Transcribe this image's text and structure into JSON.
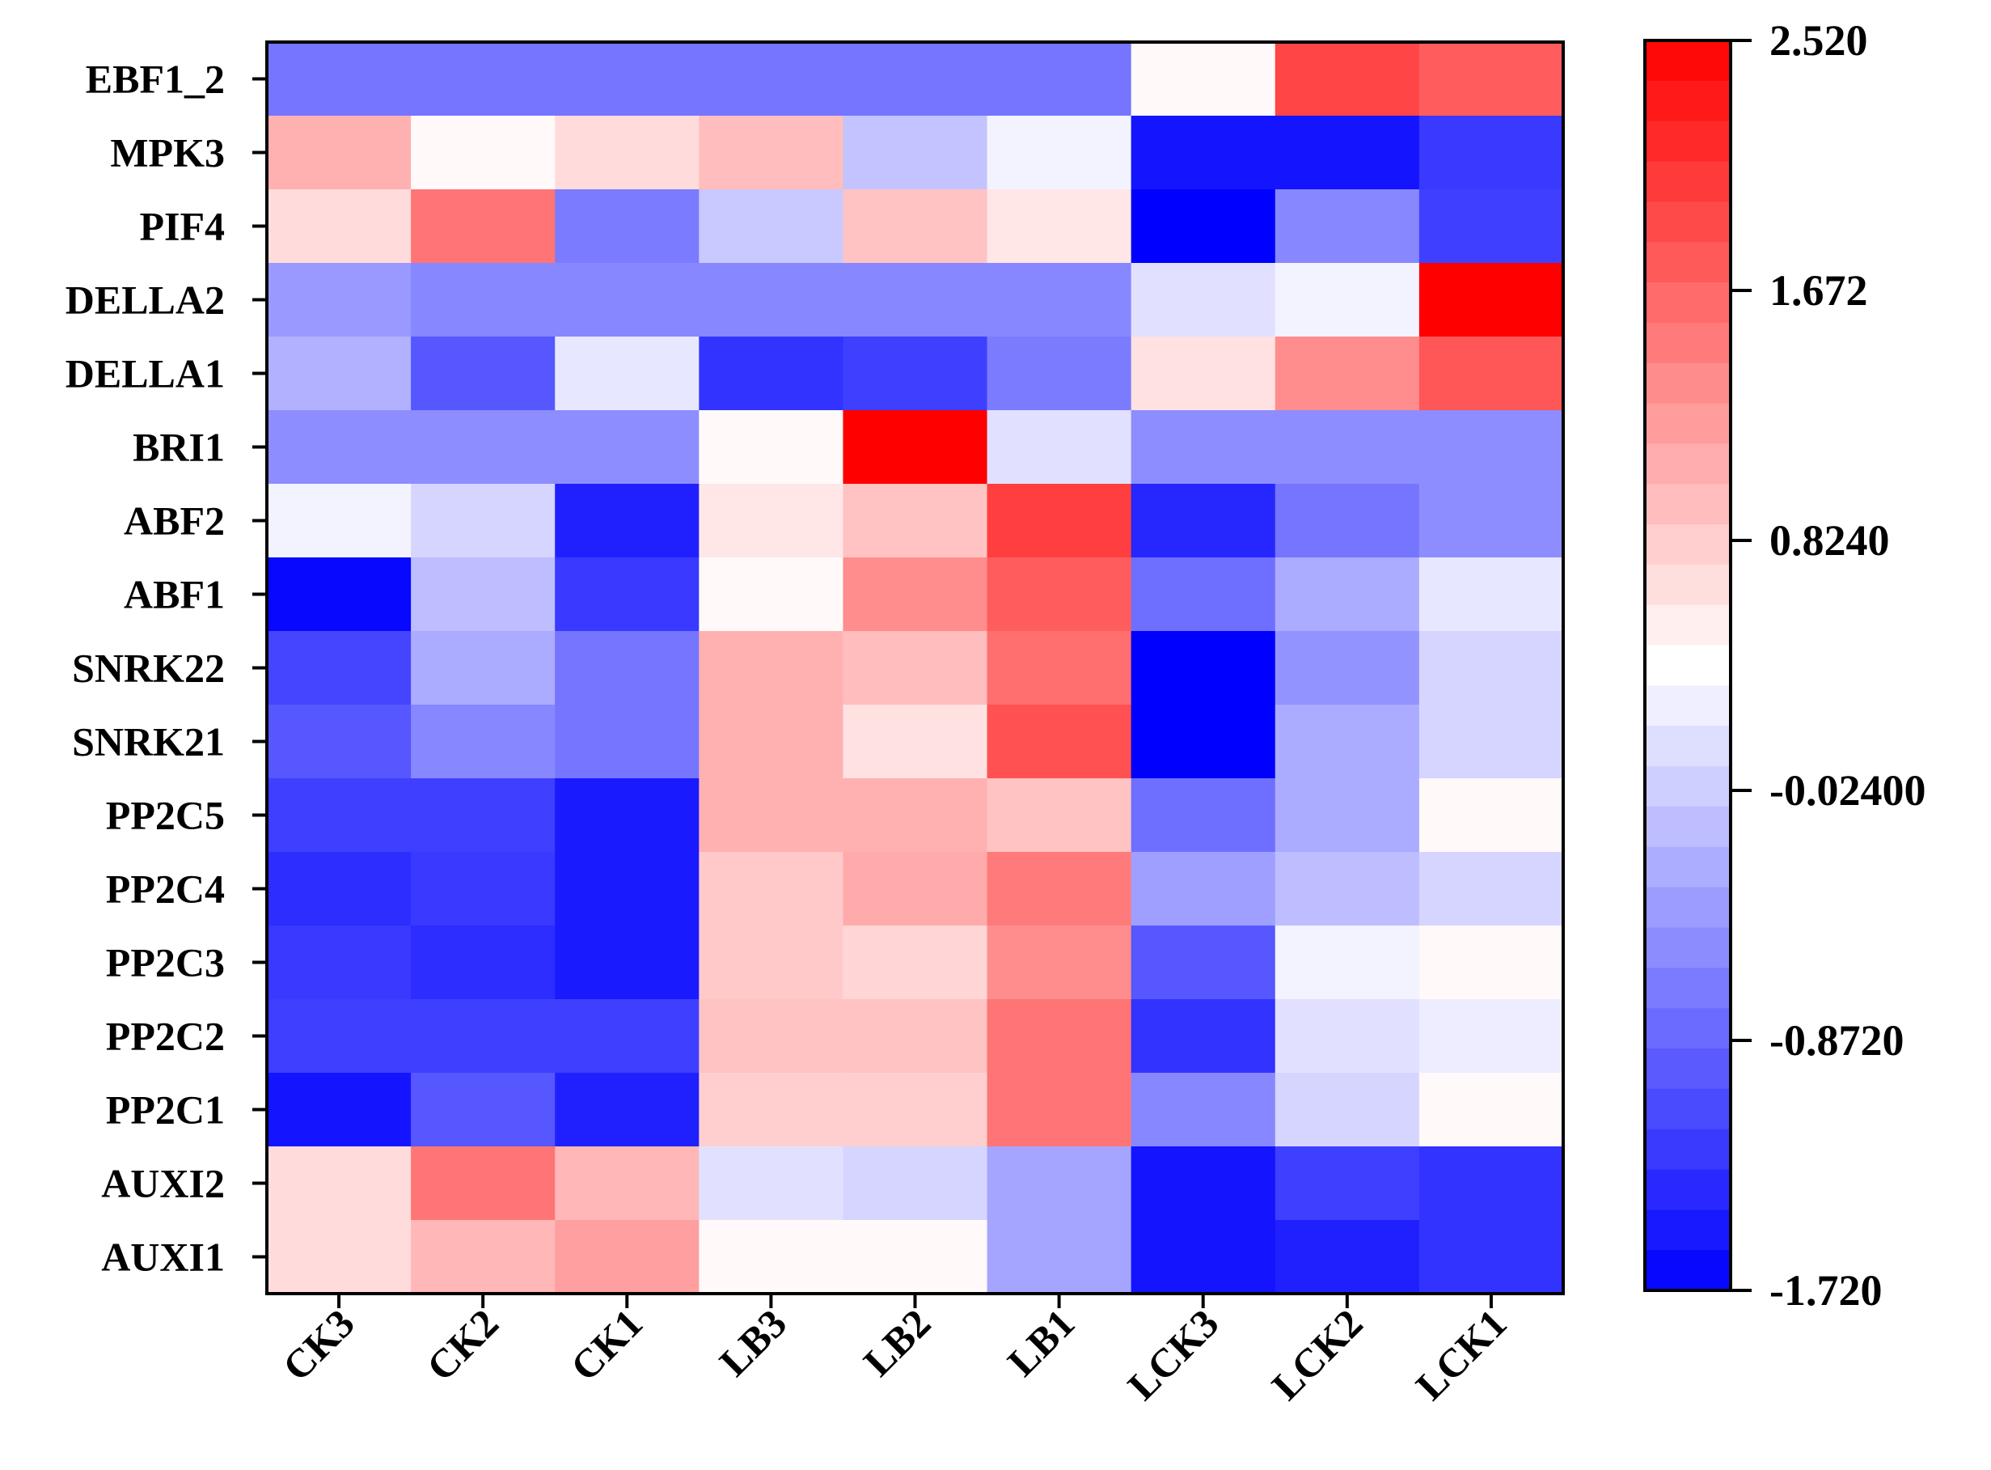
{
  "chart_data": {
    "type": "heatmap",
    "title": "",
    "xlabel": "",
    "ylabel": "",
    "columns": [
      "CK3",
      "CK2",
      "CK1",
      "LB3",
      "LB2",
      "LB1",
      "LCK3",
      "LCK2",
      "LCK1"
    ],
    "rows": [
      "EBF1_2",
      "MPK3",
      "PIF4",
      "DELLA2",
      "DELLA1",
      "BRI1",
      "ABF2",
      "ABF1",
      "SNRK22",
      "SNRK21",
      "PP2C5",
      "PP2C4",
      "PP2C3",
      "PP2C2",
      "PP2C1",
      "AUXI2",
      "AUXI1"
    ],
    "values": [
      [
        -0.75,
        -0.75,
        -0.75,
        -0.75,
        -0.75,
        -0.75,
        0.45,
        1.95,
        1.75
      ],
      [
        1.05,
        0.45,
        0.7,
        0.95,
        -0.1,
        0.3,
        -1.55,
        -1.55,
        -1.25
      ],
      [
        0.7,
        1.55,
        -0.7,
        -0.05,
        0.9,
        0.6,
        -1.72,
        -0.6,
        -1.2
      ],
      [
        -0.45,
        -0.6,
        -0.6,
        -0.6,
        -0.6,
        -0.6,
        0.15,
        0.3,
        2.52
      ],
      [
        -0.25,
        -1.0,
        0.2,
        -1.3,
        -1.2,
        -0.7,
        0.65,
        1.35,
        1.8
      ],
      [
        -0.55,
        -0.55,
        -0.55,
        0.45,
        2.52,
        0.15,
        -0.55,
        -0.55,
        -0.55
      ],
      [
        0.3,
        0.05,
        -1.45,
        0.6,
        0.9,
        2.0,
        -1.4,
        -0.75,
        -0.55
      ],
      [
        -1.65,
        -0.15,
        -1.25,
        0.45,
        1.35,
        1.75,
        -0.8,
        -0.3,
        0.2
      ],
      [
        -1.15,
        -0.3,
        -0.75,
        1.05,
        0.95,
        1.6,
        -1.72,
        -0.5,
        0.05
      ],
      [
        -1.0,
        -0.6,
        -0.75,
        1.05,
        0.65,
        1.85,
        -1.72,
        -0.3,
        0.05
      ],
      [
        -1.2,
        -1.2,
        -1.5,
        1.05,
        1.05,
        0.9,
        -0.8,
        -0.3,
        0.45
      ],
      [
        -1.35,
        -1.25,
        -1.5,
        0.85,
        1.1,
        1.5,
        -0.4,
        -0.15,
        0.05
      ],
      [
        -1.25,
        -1.35,
        -1.5,
        0.85,
        0.75,
        1.35,
        -1.0,
        0.3,
        0.45
      ],
      [
        -1.2,
        -1.2,
        -1.2,
        0.9,
        0.9,
        1.55,
        -1.3,
        0.15,
        0.25
      ],
      [
        -1.55,
        -1.0,
        -1.45,
        0.8,
        0.8,
        1.55,
        -0.6,
        0.05,
        0.45
      ],
      [
        0.7,
        1.55,
        1.0,
        0.15,
        0.05,
        -0.35,
        -1.55,
        -1.2,
        -1.3
      ],
      [
        0.7,
        1.0,
        1.2,
        0.45,
        0.45,
        -0.35,
        -1.55,
        -1.45,
        -1.3
      ]
    ],
    "colorbar": {
      "min": -1.72,
      "max": 2.52,
      "ticks": [
        "2.520",
        "1.672",
        "0.8240",
        "-0.02400",
        "-0.8720",
        "-1.720"
      ],
      "low_color": "#0000ff",
      "mid_color": "#ffffff",
      "high_color": "#ff0000",
      "steps": 31
    }
  }
}
